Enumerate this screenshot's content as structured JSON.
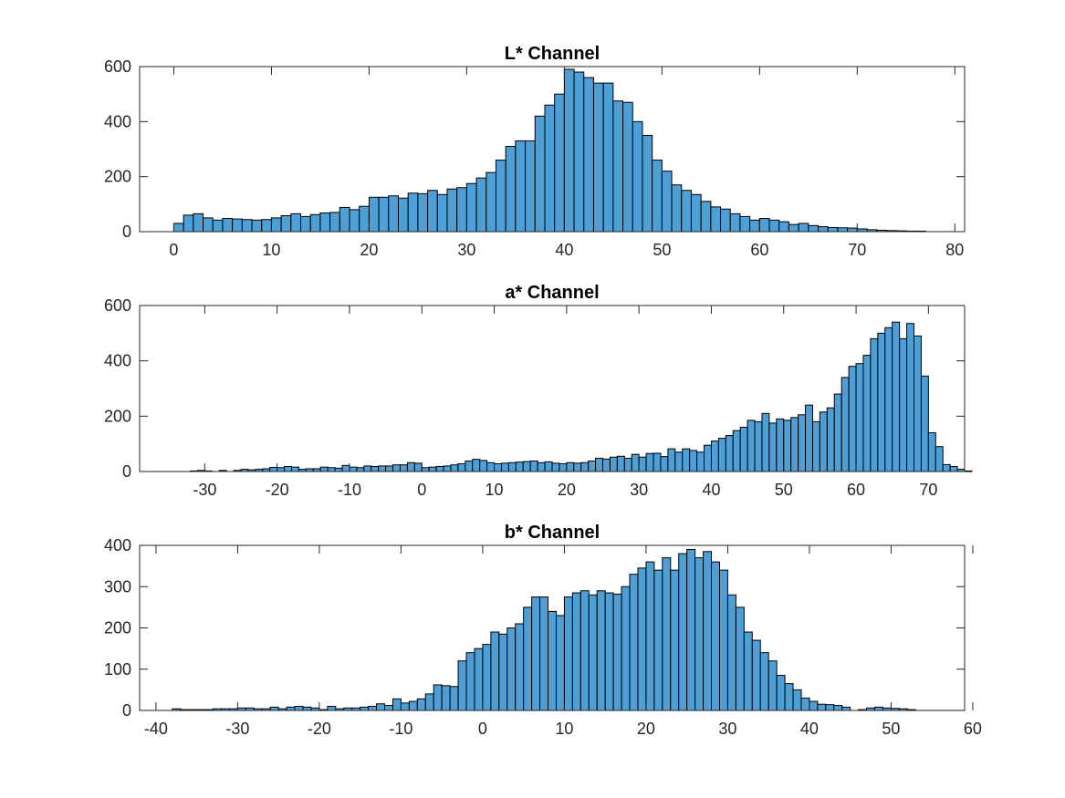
{
  "chart_data": [
    {
      "type": "bar",
      "title": "L* Channel",
      "xlabel": "",
      "ylabel": "",
      "xlim": [
        -3.5,
        81
      ],
      "ylim": [
        0,
        600
      ],
      "xticks": [
        0,
        10,
        20,
        30,
        40,
        50,
        60,
        70,
        80
      ],
      "yticks": [
        0,
        200,
        400,
        600
      ],
      "bin_start": 0,
      "bin_width": 1,
      "values": [
        30,
        60,
        65,
        50,
        42,
        48,
        46,
        44,
        42,
        44,
        50,
        58,
        65,
        55,
        62,
        68,
        70,
        88,
        80,
        92,
        125,
        125,
        130,
        122,
        140,
        138,
        150,
        135,
        155,
        160,
        175,
        195,
        215,
        260,
        310,
        330,
        330,
        420,
        460,
        500,
        590,
        580,
        560,
        540,
        540,
        475,
        470,
        400,
        350,
        260,
        220,
        170,
        150,
        135,
        110,
        90,
        82,
        65,
        55,
        42,
        48,
        42,
        36,
        26,
        30,
        22,
        18,
        15,
        14,
        13,
        10,
        7,
        5,
        4,
        3,
        2,
        2
      ]
    },
    {
      "type": "bar",
      "title": "a* Channel",
      "xlabel": "",
      "ylabel": "",
      "xlim": [
        -39,
        75
      ],
      "ylim": [
        0,
        600
      ],
      "xticks": [
        -30,
        -20,
        -10,
        0,
        10,
        20,
        30,
        40,
        50,
        60,
        70
      ],
      "yticks": [
        0,
        200,
        400,
        600
      ],
      "bin_start": -34,
      "bin_width": 1,
      "values": [
        0,
        0,
        2,
        4,
        2,
        0,
        4,
        0,
        4,
        8,
        6,
        8,
        10,
        15,
        14,
        18,
        16,
        8,
        10,
        10,
        16,
        14,
        12,
        22,
        16,
        14,
        20,
        18,
        20,
        20,
        24,
        24,
        32,
        30,
        14,
        16,
        18,
        20,
        24,
        28,
        38,
        44,
        40,
        32,
        28,
        30,
        32,
        34,
        36,
        38,
        32,
        35,
        30,
        28,
        32,
        30,
        32,
        38,
        48,
        45,
        52,
        55,
        48,
        62,
        52,
        65,
        66,
        54,
        82,
        70,
        82,
        76,
        70,
        95,
        110,
        120,
        130,
        148,
        160,
        185,
        180,
        210,
        175,
        190,
        185,
        195,
        205,
        240,
        180,
        215,
        230,
        280,
        340,
        380,
        390,
        420,
        480,
        500,
        520,
        540,
        480,
        535,
        490,
        345,
        140,
        90,
        25,
        18,
        8,
        2
      ]
    },
    {
      "type": "bar",
      "title": "b* Channel",
      "xlabel": "",
      "ylabel": "",
      "xlim": [
        -42,
        59
      ],
      "ylim": [
        0,
        400
      ],
      "xticks": [
        -40,
        -30,
        -20,
        -10,
        0,
        10,
        20,
        30,
        40,
        50,
        60
      ],
      "yticks": [
        0,
        100,
        200,
        300,
        400
      ],
      "bin_start": -38,
      "bin_width": 1,
      "values": [
        4,
        2,
        2,
        2,
        2,
        4,
        4,
        4,
        6,
        6,
        4,
        4,
        8,
        4,
        8,
        10,
        8,
        6,
        2,
        10,
        4,
        6,
        6,
        8,
        10,
        16,
        12,
        28,
        18,
        22,
        28,
        40,
        62,
        60,
        58,
        120,
        140,
        150,
        160,
        190,
        185,
        200,
        210,
        250,
        275,
        275,
        240,
        230,
        275,
        285,
        290,
        280,
        290,
        285,
        282,
        300,
        330,
        345,
        360,
        340,
        370,
        340,
        380,
        390,
        370,
        385,
        360,
        340,
        280,
        250,
        190,
        170,
        140,
        120,
        85,
        65,
        50,
        30,
        22,
        15,
        14,
        12,
        8,
        0,
        2,
        6,
        8,
        6,
        5,
        4,
        2
      ]
    }
  ]
}
